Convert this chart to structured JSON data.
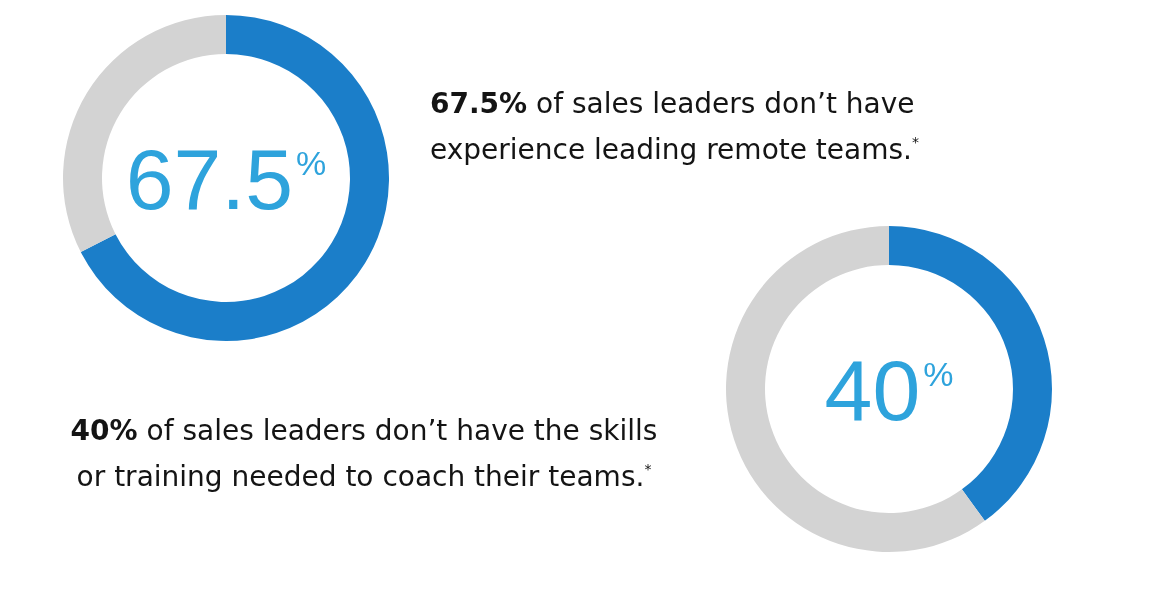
{
  "chart_data": [
    {
      "type": "donut",
      "categories": [
        null,
        null
      ],
      "values": [
        67.5,
        32.5
      ],
      "colors": [
        "#1b7ec9",
        "#d3d3d3"
      ],
      "annotations": [
        "67.5$^{%}$",
        "67.5% of sales leaders don’t have experience leading remote teams.$^{*}$"
      ]
    },
    {
      "type": "donut",
      "categories": [
        null,
        null
      ],
      "values": [
        40,
        60
      ],
      "colors": [
        "#1b7ec9",
        "#d3d3d3"
      ],
      "annotations": [
        "40$^{%}$",
        "40% of sales leaders don’t have the skills or training needed to coach their teams.$^{*}$"
      ]
    }
  ]
}
